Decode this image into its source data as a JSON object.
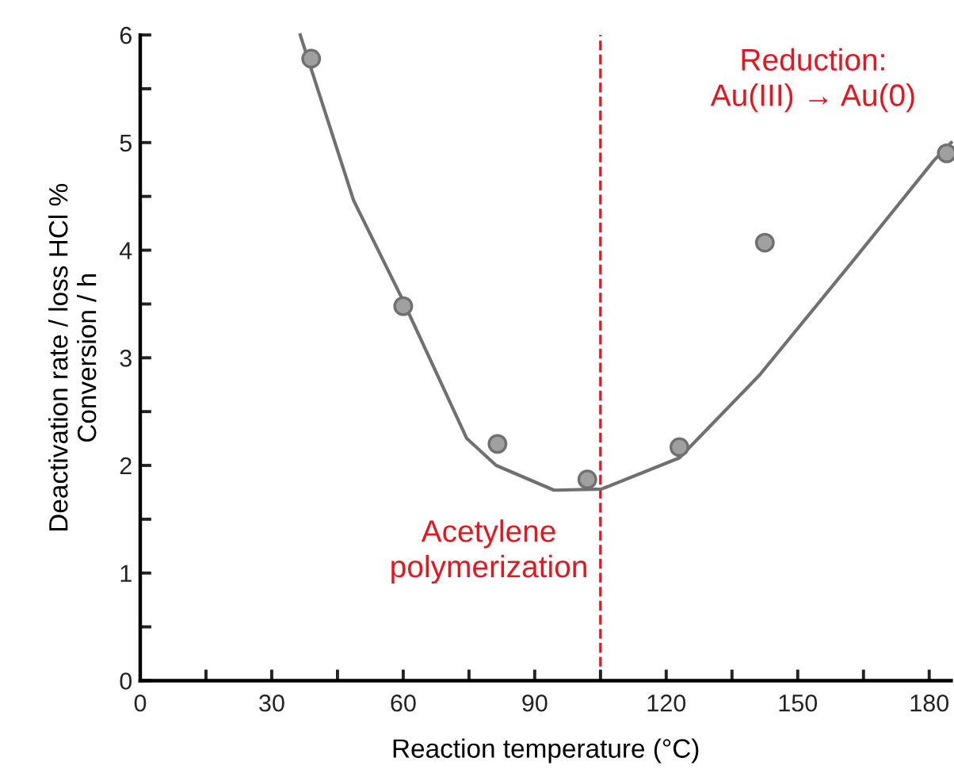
{
  "chart_data": {
    "type": "scatter",
    "xlabel": "Reaction temperature (°C)",
    "ylabel": "Deactivation rate / loss HCl %\nConversion / h",
    "series": [
      {
        "marker": "circle",
        "color": "#a0a0a0",
        "x": [
          39,
          60,
          81.5,
          102,
          123,
          142.5,
          184
        ],
        "values": [
          5.78,
          3.48,
          2.2,
          1.87,
          2.17,
          4.07,
          4.9
        ]
      },
      {
        "type": "line",
        "color": "#707070",
        "x": [
          36.5,
          48.7,
          59.5,
          74.5,
          81.2,
          94.4,
          105.2,
          123,
          141.3,
          163,
          181,
          185
        ],
        "values": [
          6.0,
          4.46,
          3.57,
          2.25,
          2.0,
          1.77,
          1.78,
          2.07,
          2.84,
          3.92,
          4.83,
          5.0
        ]
      }
    ],
    "xlim": [
      0,
      185
    ],
    "xticks": [
      0,
      {
        "value": 15,
        "label": null
      },
      30,
      {
        "value": 45,
        "label": null
      },
      60,
      {
        "value": 75,
        "label": null
      },
      90,
      {
        "value": 105,
        "label": null
      },
      120,
      {
        "value": 135,
        "label": null
      },
      150,
      {
        "value": 165,
        "label": null
      },
      180
    ],
    "ylim": [
      0,
      6
    ],
    "yticks": [
      0,
      {
        "value": 0.5,
        "label": null
      },
      1,
      {
        "value": 1.5,
        "label": null
      },
      2,
      {
        "value": 2.5,
        "label": null
      },
      3,
      {
        "value": 3.5,
        "label": null
      },
      4,
      {
        "value": 4.5,
        "label": null
      },
      5,
      {
        "value": 5.5,
        "label": null
      },
      6
    ],
    "ref_lines": [
      {
        "axis": "x",
        "value": 105,
        "color": "#e8141e",
        "line_style": "dashed"
      }
    ],
    "annotations": [
      "Reduction:\nAu(III) → Au(0)",
      "Acetylene\npolymerization"
    ],
    "grid": false,
    "legend": false
  }
}
